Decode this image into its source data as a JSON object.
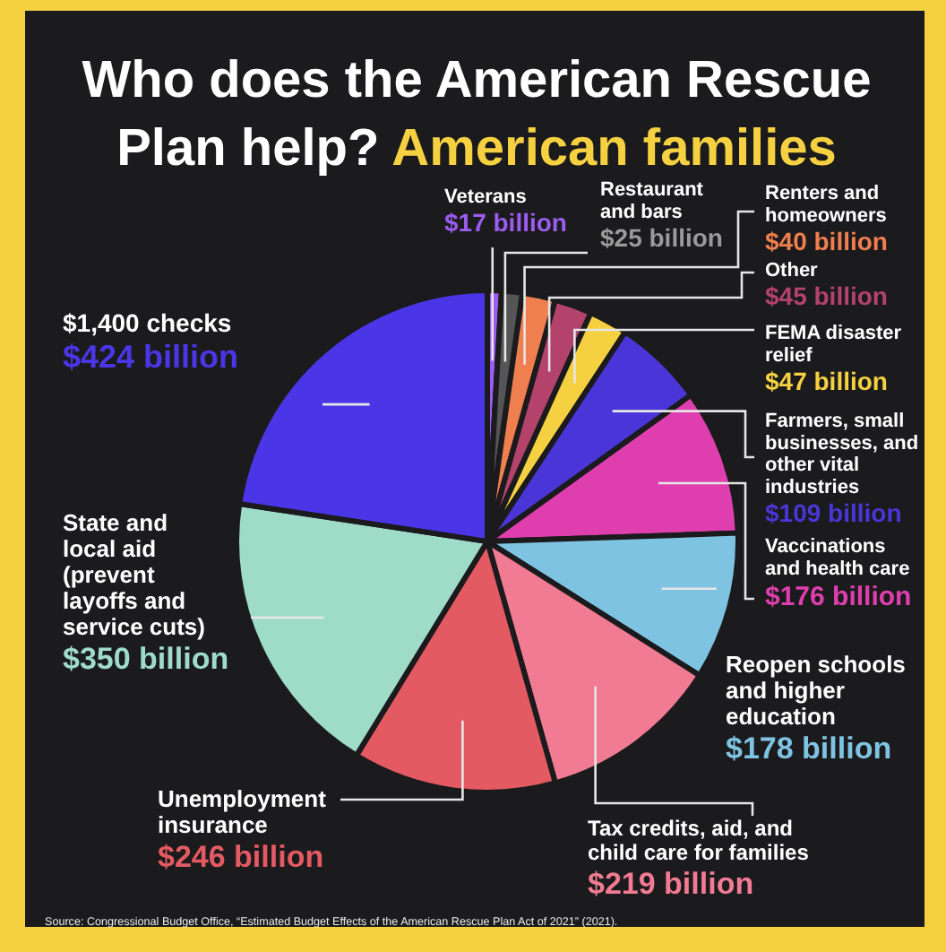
{
  "chart_data": {
    "type": "pie",
    "title": "Who does the American Rescue Plan help?",
    "subtitle": "American families",
    "categories": [
      "Veterans",
      "Restaurant and bars",
      "Renters and homeowners",
      "Other",
      "FEMA disaster relief",
      "Farmers, small businesses, and other vital industries",
      "Vaccinations and health care",
      "Reopen schools and higher education",
      "Tax credits, aid, and child care for families",
      "Unemployment insurance",
      "State and local aid (prevent layoffs and service cuts)",
      "$1,400 checks"
    ],
    "values": [
      17,
      25,
      40,
      45,
      47,
      109,
      176,
      178,
      219,
      246,
      350,
      424
    ],
    "value_labels": [
      "$17 billion",
      "$25 billion",
      "$40 billion",
      "$45 billion",
      "$47 billion",
      "$109 billion",
      "$176 billion",
      "$178 billion",
      "$219 billion",
      "$246 billion",
      "$350 billion",
      "$424 billion"
    ],
    "colors": [
      "#9b5cf0",
      "#555555",
      "#f07f4f",
      "#b3436a",
      "#f5d142",
      "#4a36d8",
      "#df3fae",
      "#7fc3e3",
      "#f07b93",
      "#e45a62",
      "#9edcc8",
      "#4a36e6"
    ],
    "annotations": [
      "Source: Congressional Budget Office, “Estimated Budget Effects of the American Rescue Plan Act of 2021” (2021)."
    ]
  }
}
